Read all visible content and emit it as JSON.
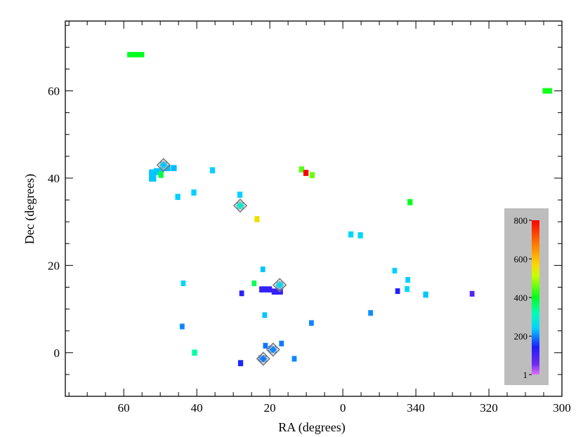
{
  "chart_data": {
    "type": "scatter",
    "xlabel": "RA (degrees)",
    "ylabel": "Dec (degrees)",
    "x_axis_note": "RA axis reversed and wrapping through 0/360",
    "x_display_range": [
      76,
      300
    ],
    "ylim": [
      -10,
      76
    ],
    "x_ticks": [
      {
        "ra": 60,
        "label": "60"
      },
      {
        "ra": 40,
        "label": "40"
      },
      {
        "ra": 20,
        "label": "20"
      },
      {
        "ra": 0,
        "label": "0"
      },
      {
        "ra": 340,
        "label": "340"
      },
      {
        "ra": 320,
        "label": "320"
      },
      {
        "ra": 300,
        "label": "300"
      }
    ],
    "y_ticks": [
      {
        "dec": 0,
        "label": "0"
      },
      {
        "dec": 20,
        "label": "20"
      },
      {
        "dec": 40,
        "label": "40"
      },
      {
        "dec": 60,
        "label": "60"
      }
    ],
    "grid": false,
    "legend": "none",
    "colorbar": {
      "position": "right-lower-inside",
      "range": [
        1,
        800
      ],
      "tick_labels": [
        "800",
        "600",
        "400",
        "200",
        "1"
      ],
      "tick_values": [
        800,
        600,
        400,
        200,
        1
      ]
    },
    "points": [
      {
        "ra": 56.8,
        "dec": 68.3,
        "value": 400,
        "w": 4.5,
        "h": 1.2
      },
      {
        "ra": 56.4,
        "dec": 68.3,
        "value": 400,
        "w": 4.0,
        "h": 1.2
      },
      {
        "ra": 52.1,
        "dec": 40.6,
        "value": 235,
        "w": 2.0,
        "h": 2.8
      },
      {
        "ra": 50.5,
        "dec": 41.5,
        "value": 235,
        "w": 2.6,
        "h": 1.6
      },
      {
        "ra": 48.3,
        "dec": 42.3,
        "value": 230,
        "w": 2.2,
        "h": 1.4
      },
      {
        "ra": 46.3,
        "dec": 42.3,
        "value": 230,
        "w": 1.6,
        "h": 1.4
      },
      {
        "ra": 49.8,
        "dec": 40.8,
        "value": 380,
        "w": 1.4,
        "h": 1.5
      },
      {
        "ra": 49.1,
        "dec": 43.0,
        "value": 235,
        "w": 1.0,
        "h": 1.0,
        "marked": true
      },
      {
        "ra": 35.7,
        "dec": 41.8,
        "value": 240,
        "w": 1.4,
        "h": 1.4
      },
      {
        "ra": 40.8,
        "dec": 36.7,
        "value": 240,
        "w": 1.4,
        "h": 1.4
      },
      {
        "ra": 45.2,
        "dec": 35.7,
        "value": 240,
        "w": 1.4,
        "h": 1.4
      },
      {
        "ra": 28.2,
        "dec": 36.2,
        "value": 240,
        "w": 1.4,
        "h": 1.4
      },
      {
        "ra": 28.1,
        "dec": 33.7,
        "value": 290,
        "w": 1.0,
        "h": 1.0,
        "marked": true
      },
      {
        "ra": 23.5,
        "dec": 30.6,
        "value": 555,
        "w": 1.4,
        "h": 1.4
      },
      {
        "ra": 11.3,
        "dec": 42.0,
        "value": 450,
        "w": 1.4,
        "h": 1.4
      },
      {
        "ra": 10.1,
        "dec": 41.2,
        "value": 800,
        "w": 1.4,
        "h": 1.4
      },
      {
        "ra": 8.4,
        "dec": 40.7,
        "value": 460,
        "w": 1.4,
        "h": 1.4
      },
      {
        "ra": 341.6,
        "dec": 34.5,
        "value": 400,
        "w": 1.4,
        "h": 1.4
      },
      {
        "ra": 357.8,
        "dec": 27.1,
        "value": 250,
        "w": 1.4,
        "h": 1.4
      },
      {
        "ra": 355.2,
        "dec": 26.9,
        "value": 250,
        "w": 1.4,
        "h": 1.4
      },
      {
        "ra": 304.0,
        "dec": 60.0,
        "value": 410,
        "w": 2.6,
        "h": 1.3
      },
      {
        "ra": 21.9,
        "dec": 19.1,
        "value": 235,
        "w": 1.3,
        "h": 1.3
      },
      {
        "ra": 24.3,
        "dec": 15.9,
        "value": 370,
        "w": 1.3,
        "h": 1.3
      },
      {
        "ra": 22.0,
        "dec": 14.5,
        "value": 120,
        "w": 1.8,
        "h": 1.4
      },
      {
        "ra": 20.3,
        "dec": 14.5,
        "value": 120,
        "w": 1.8,
        "h": 1.4
      },
      {
        "ra": 18.7,
        "dec": 14.0,
        "value": 120,
        "w": 1.6,
        "h": 1.4
      },
      {
        "ra": 17.2,
        "dec": 14.0,
        "value": 120,
        "w": 1.6,
        "h": 1.4
      },
      {
        "ra": 17.3,
        "dec": 15.5,
        "value": 250,
        "w": 1.0,
        "h": 1.0,
        "marked": true
      },
      {
        "ra": 27.7,
        "dec": 13.6,
        "value": 130,
        "w": 1.3,
        "h": 1.3
      },
      {
        "ra": 43.7,
        "dec": 15.9,
        "value": 250,
        "w": 1.3,
        "h": 1.3
      },
      {
        "ra": 21.4,
        "dec": 8.6,
        "value": 235,
        "w": 1.3,
        "h": 1.3
      },
      {
        "ra": 44.0,
        "dec": 6.0,
        "value": 200,
        "w": 1.3,
        "h": 1.3
      },
      {
        "ra": 8.6,
        "dec": 6.8,
        "value": 200,
        "w": 1.3,
        "h": 1.3
      },
      {
        "ra": 352.4,
        "dec": 9.1,
        "value": 205,
        "w": 1.3,
        "h": 1.3
      },
      {
        "ra": 40.6,
        "dec": 0.0,
        "value": 330,
        "w": 1.4,
        "h": 1.4
      },
      {
        "ra": 21.2,
        "dec": 1.6,
        "value": 190,
        "w": 1.3,
        "h": 1.3
      },
      {
        "ra": 19.7,
        "dec": 0.9,
        "value": 195,
        "w": 1.4,
        "h": 1.4
      },
      {
        "ra": 19.1,
        "dec": 0.7,
        "value": 200,
        "w": 1.0,
        "h": 1.0,
        "marked": true
      },
      {
        "ra": 16.8,
        "dec": 2.1,
        "value": 195,
        "w": 1.3,
        "h": 1.3
      },
      {
        "ra": 13.3,
        "dec": -1.4,
        "value": 200,
        "w": 1.3,
        "h": 1.3
      },
      {
        "ra": 22.4,
        "dec": -1.3,
        "value": 180,
        "w": 1.4,
        "h": 1.4
      },
      {
        "ra": 21.8,
        "dec": -1.4,
        "value": 195,
        "w": 1.0,
        "h": 1.0,
        "marked": true
      },
      {
        "ra": 28.0,
        "dec": -2.4,
        "value": 150,
        "w": 1.4,
        "h": 1.4
      },
      {
        "ra": 345.8,
        "dec": 18.8,
        "value": 240,
        "w": 1.3,
        "h": 1.3
      },
      {
        "ra": 342.2,
        "dec": 16.7,
        "value": 240,
        "w": 1.3,
        "h": 1.3
      },
      {
        "ra": 342.4,
        "dec": 14.6,
        "value": 250,
        "w": 1.3,
        "h": 1.3
      },
      {
        "ra": 345.0,
        "dec": 14.1,
        "value": 140,
        "w": 1.3,
        "h": 1.3
      },
      {
        "ra": 337.3,
        "dec": 13.3,
        "value": 235,
        "w": 1.4,
        "h": 1.4
      },
      {
        "ra": 324.6,
        "dec": 13.5,
        "value": 90,
        "w": 1.3,
        "h": 1.3
      }
    ]
  }
}
